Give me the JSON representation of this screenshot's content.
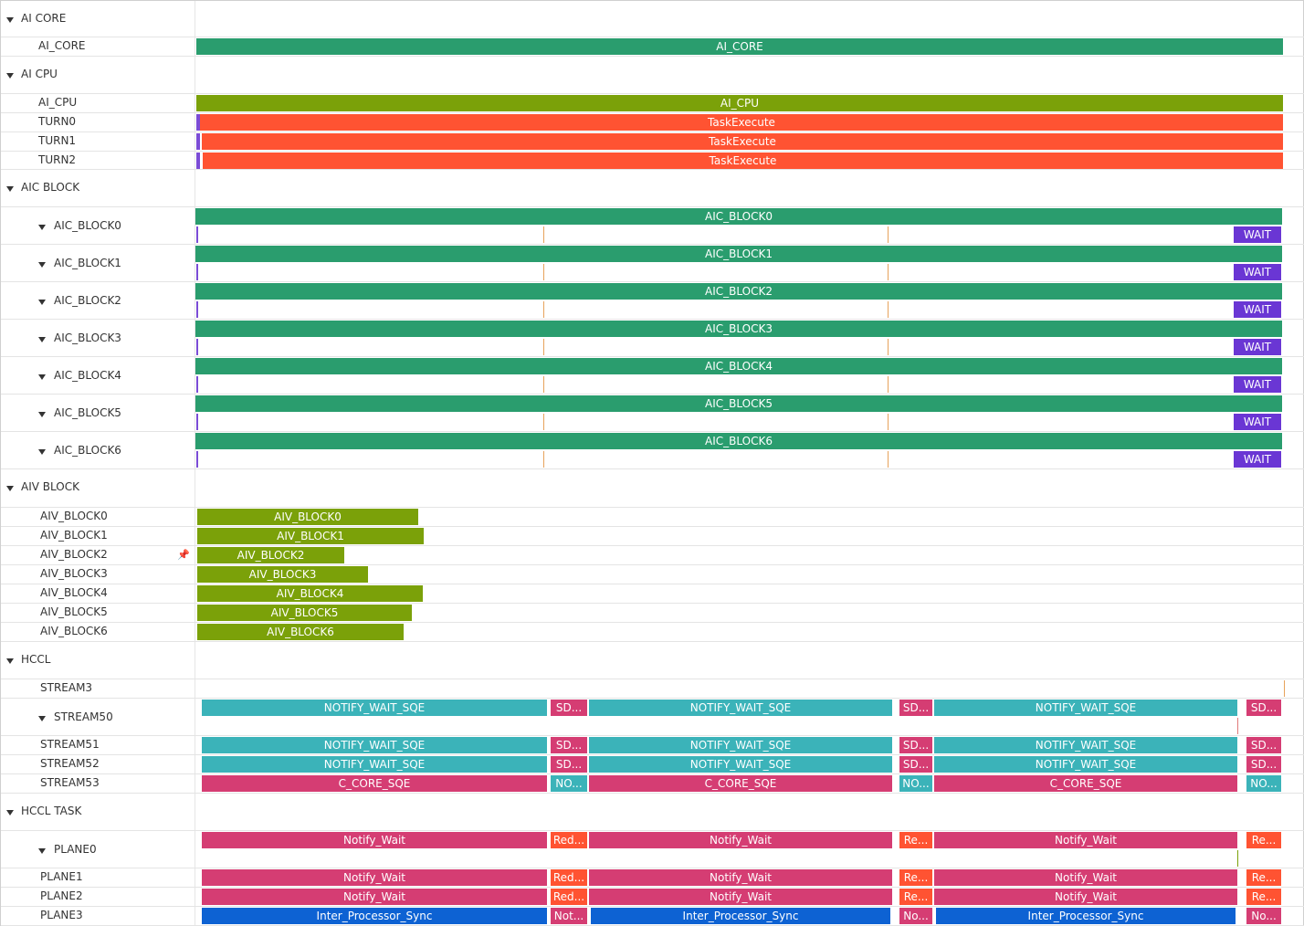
{
  "colors": {
    "green": "#2a9d6e",
    "olive": "#7ba109",
    "orange": "#ff5332",
    "purple": "#6a36d4",
    "teal": "#3bb3b9",
    "pink": "#d53d73",
    "blue": "#0d62d3",
    "tick_orange": "#e7a25b",
    "tick_purple": "#7b4cd6"
  },
  "icons": {
    "pin": "pin-icon"
  },
  "rows": [
    {
      "id": "ai-core",
      "type": "group",
      "label": "AI CORE"
    },
    {
      "id": "ai-core-track",
      "type": "track",
      "label": "AI_CORE",
      "bars": [
        {
          "l": "AI_CORE",
          "c": "green"
        }
      ]
    },
    {
      "id": "ai-cpu",
      "type": "group",
      "label": "AI CPU"
    },
    {
      "id": "ai-cpu-track",
      "type": "track",
      "label": "AI_CPU",
      "bars": [
        {
          "l": "AI_CPU",
          "c": "olive"
        }
      ]
    },
    {
      "id": "turn0",
      "type": "track",
      "label": "TURN0",
      "bars": [
        {
          "l": "TaskExecute",
          "c": "orange"
        }
      ]
    },
    {
      "id": "turn1",
      "type": "track",
      "label": "TURN1",
      "bars": [
        {
          "l": "TaskExecute",
          "c": "orange"
        }
      ]
    },
    {
      "id": "turn2",
      "type": "track",
      "label": "TURN2",
      "bars": [
        {
          "l": "TaskExecute",
          "c": "orange"
        }
      ]
    },
    {
      "id": "aic-block",
      "type": "group",
      "label": "AIC BLOCK"
    },
    {
      "id": "aic-block0",
      "type": "sub",
      "label": "AIC_BLOCK0",
      "top": "AIC_BLOCK0",
      "wait": "WAIT"
    },
    {
      "id": "aic-block1",
      "type": "sub",
      "label": "AIC_BLOCK1",
      "top": "AIC_BLOCK1",
      "wait": "WAIT"
    },
    {
      "id": "aic-block2",
      "type": "sub",
      "label": "AIC_BLOCK2",
      "top": "AIC_BLOCK2",
      "wait": "WAIT"
    },
    {
      "id": "aic-block3",
      "type": "sub",
      "label": "AIC_BLOCK3",
      "top": "AIC_BLOCK3",
      "wait": "WAIT"
    },
    {
      "id": "aic-block4",
      "type": "sub",
      "label": "AIC_BLOCK4",
      "top": "AIC_BLOCK4",
      "wait": "WAIT"
    },
    {
      "id": "aic-block5",
      "type": "sub",
      "label": "AIC_BLOCK5",
      "top": "AIC_BLOCK5",
      "wait": "WAIT"
    },
    {
      "id": "aic-block6",
      "type": "sub",
      "label": "AIC_BLOCK6",
      "top": "AIC_BLOCK6",
      "wait": "WAIT"
    },
    {
      "id": "aiv-block",
      "type": "group",
      "label": "AIV BLOCK"
    },
    {
      "id": "aiv-block0",
      "type": "track",
      "label": "AIV_BLOCK0",
      "bars": [
        {
          "l": "AIV_BLOCK0",
          "c": "olive"
        }
      ]
    },
    {
      "id": "aiv-block1",
      "type": "track",
      "label": "AIV_BLOCK1",
      "bars": [
        {
          "l": "AIV_BLOCK1",
          "c": "olive"
        }
      ]
    },
    {
      "id": "aiv-block2",
      "type": "track",
      "label": "AIV_BLOCK2",
      "pin": true,
      "bars": [
        {
          "l": "AIV_BLOCK2",
          "c": "olive"
        }
      ]
    },
    {
      "id": "aiv-block3",
      "type": "track",
      "label": "AIV_BLOCK3",
      "bars": [
        {
          "l": "AIV_BLOCK3",
          "c": "olive"
        }
      ]
    },
    {
      "id": "aiv-block4",
      "type": "track",
      "label": "AIV_BLOCK4",
      "bars": [
        {
          "l": "AIV_BLOCK4",
          "c": "olive"
        }
      ]
    },
    {
      "id": "aiv-block5",
      "type": "track",
      "label": "AIV_BLOCK5",
      "bars": [
        {
          "l": "AIV_BLOCK5",
          "c": "olive"
        }
      ]
    },
    {
      "id": "aiv-block6",
      "type": "track",
      "label": "AIV_BLOCK6",
      "bars": [
        {
          "l": "AIV_BLOCK6",
          "c": "olive"
        }
      ]
    },
    {
      "id": "hccl",
      "type": "group",
      "label": "HCCL"
    },
    {
      "id": "stream3",
      "type": "track",
      "label": "STREAM3",
      "bars": []
    },
    {
      "id": "stream50",
      "type": "subtrack",
      "label": "STREAM50",
      "bars": [
        {
          "l": "NOTIFY_WAIT_SQE",
          "c": "teal"
        },
        {
          "l": "SD...",
          "c": "pink"
        },
        {
          "l": "NOTIFY_WAIT_SQE",
          "c": "teal"
        },
        {
          "l": "SD...",
          "c": "pink"
        },
        {
          "l": "NOTIFY_WAIT_SQE",
          "c": "teal"
        },
        {
          "l": "SD...",
          "c": "pink"
        }
      ]
    },
    {
      "id": "stream51",
      "type": "track",
      "label": "STREAM51",
      "bars": [
        {
          "l": "NOTIFY_WAIT_SQE",
          "c": "teal"
        },
        {
          "l": "SD...",
          "c": "pink"
        },
        {
          "l": "NOTIFY_WAIT_SQE",
          "c": "teal"
        },
        {
          "l": "SD...",
          "c": "pink"
        },
        {
          "l": "NOTIFY_WAIT_SQE",
          "c": "teal"
        },
        {
          "l": "SD...",
          "c": "pink"
        }
      ]
    },
    {
      "id": "stream52",
      "type": "track",
      "label": "STREAM52",
      "bars": [
        {
          "l": "NOTIFY_WAIT_SQE",
          "c": "teal"
        },
        {
          "l": "SD...",
          "c": "pink"
        },
        {
          "l": "NOTIFY_WAIT_SQE",
          "c": "teal"
        },
        {
          "l": "SD...",
          "c": "pink"
        },
        {
          "l": "NOTIFY_WAIT_SQE",
          "c": "teal"
        },
        {
          "l": "SD...",
          "c": "pink"
        }
      ]
    },
    {
      "id": "stream53",
      "type": "track",
      "label": "STREAM53",
      "bars": [
        {
          "l": "C_CORE_SQE",
          "c": "pink"
        },
        {
          "l": "NO...",
          "c": "teal"
        },
        {
          "l": "C_CORE_SQE",
          "c": "pink"
        },
        {
          "l": "NO...",
          "c": "teal"
        },
        {
          "l": "C_CORE_SQE",
          "c": "pink"
        },
        {
          "l": "NO...",
          "c": "teal"
        }
      ]
    },
    {
      "id": "hccl-task",
      "type": "group",
      "label": "HCCL TASK"
    },
    {
      "id": "plane0",
      "type": "subtrack",
      "label": "PLANE0",
      "bars": [
        {
          "l": "Notify_Wait",
          "c": "pink"
        },
        {
          "l": "Red...",
          "c": "orange"
        },
        {
          "l": "Notify_Wait",
          "c": "pink"
        },
        {
          "l": "Re...",
          "c": "orange"
        },
        {
          "l": "Notify_Wait",
          "c": "pink"
        },
        {
          "l": "Re...",
          "c": "orange"
        }
      ]
    },
    {
      "id": "plane1",
      "type": "track",
      "label": "PLANE1",
      "bars": [
        {
          "l": "Notify_Wait",
          "c": "pink"
        },
        {
          "l": "Red...",
          "c": "orange"
        },
        {
          "l": "Notify_Wait",
          "c": "pink"
        },
        {
          "l": "Re...",
          "c": "orange"
        },
        {
          "l": "Notify_Wait",
          "c": "pink"
        },
        {
          "l": "Re...",
          "c": "orange"
        }
      ]
    },
    {
      "id": "plane2",
      "type": "track",
      "label": "PLANE2",
      "bars": [
        {
          "l": "Notify_Wait",
          "c": "pink"
        },
        {
          "l": "Red...",
          "c": "orange"
        },
        {
          "l": "Notify_Wait",
          "c": "pink"
        },
        {
          "l": "Re...",
          "c": "orange"
        },
        {
          "l": "Notify_Wait",
          "c": "pink"
        },
        {
          "l": "Re...",
          "c": "orange"
        }
      ]
    },
    {
      "id": "plane3",
      "type": "track",
      "label": "PLANE3",
      "bars": [
        {
          "l": "Inter_Processor_Sync",
          "c": "blue"
        },
        {
          "l": "Not...",
          "c": "pink"
        },
        {
          "l": "Inter_Processor_Sync",
          "c": "blue"
        },
        {
          "l": "No...",
          "c": "pink"
        },
        {
          "l": "Inter_Processor_Sync",
          "c": "blue"
        },
        {
          "l": "No...",
          "c": "pink"
        }
      ]
    }
  ]
}
